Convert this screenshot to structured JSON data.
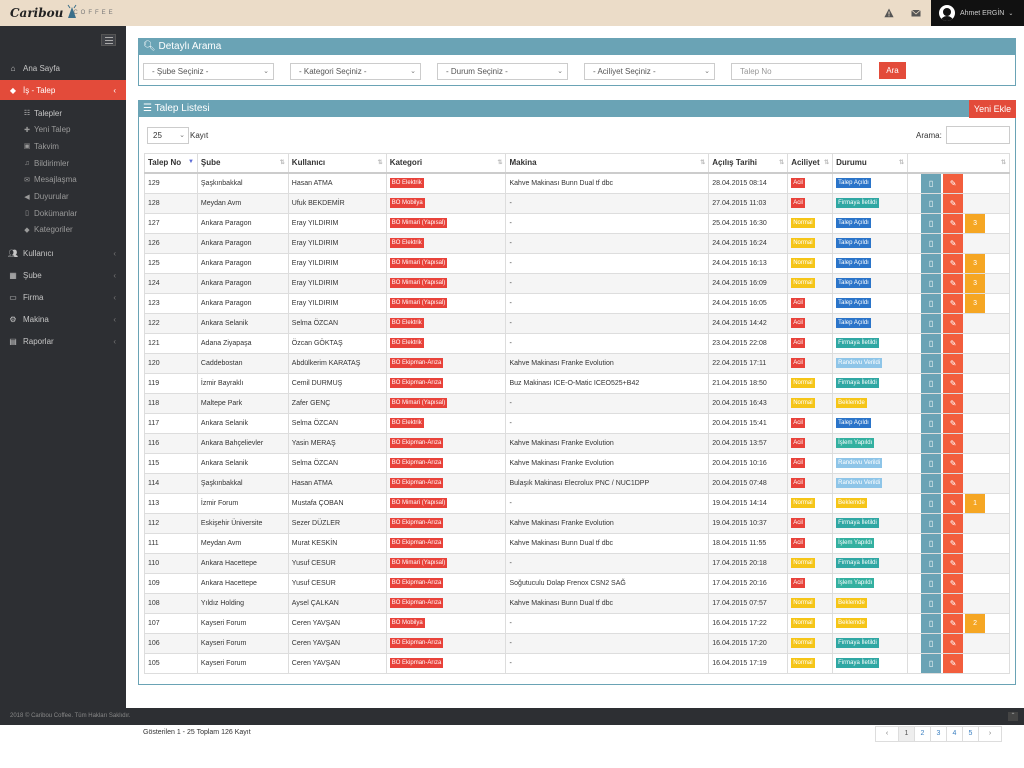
{
  "brand": {
    "name": "Caribou",
    "suffix": "COFFEE"
  },
  "topbar": {
    "alert_icon": "warning-icon",
    "mail_icon": "envelope-icon",
    "user_name": "Ahmet ERGİN"
  },
  "sidebar": {
    "items": [
      {
        "label": "Ana Sayfa",
        "icon": "home-icon"
      },
      {
        "label": "İş - Talep",
        "icon": "tag-icon",
        "active": true
      },
      {
        "label": "Kullanıcı",
        "icon": "users-icon"
      },
      {
        "label": "Şube",
        "icon": "building-icon"
      },
      {
        "label": "Firma",
        "icon": "card-icon"
      },
      {
        "label": "Makina",
        "icon": "cogs-icon"
      },
      {
        "label": "Raporlar",
        "icon": "chart-icon"
      }
    ],
    "subitems": [
      {
        "label": "Talepler",
        "icon": "list-icon"
      },
      {
        "label": "Yeni Talep",
        "icon": "plus-icon"
      },
      {
        "label": "Takvim",
        "icon": "calendar-icon"
      },
      {
        "label": "Bildirimler",
        "icon": "bell-icon"
      },
      {
        "label": "Mesajlaşma",
        "icon": "comment-icon"
      },
      {
        "label": "Duyurular",
        "icon": "megaphone-icon"
      },
      {
        "label": "Dokümanlar",
        "icon": "file-icon"
      },
      {
        "label": "Kategoriler",
        "icon": "tag-icon"
      }
    ]
  },
  "search": {
    "title": "Detaylı Arama",
    "sube": "- Şube Seçiniz -",
    "kategori": "- Kategori Seçiniz -",
    "durum": "- Durum Seçiniz -",
    "aciliyet": "- Aciliyet Seçiniz -",
    "talep_placeholder": "Talep No",
    "button": "Ara"
  },
  "list": {
    "title": "Talep Listesi",
    "new_button": "Yeni Ekle",
    "page_size": "25",
    "page_size_label": "Kayıt",
    "search_label": "Arama:",
    "columns": [
      "Talep No",
      "Şube",
      "Kullanıcı",
      "Kategori",
      "Makina",
      "Açılış Tarihi",
      "Aciliyet",
      "Durumu"
    ],
    "rows": [
      {
        "no": "129",
        "sube": "Şaşkınbakkal",
        "user": "Hasan ATMA",
        "kat": "BO Elektrik",
        "makina": "Kahve Makinası Bunn Dual tf dbc",
        "tarih": "28.04.2015 08:14",
        "acil": "Acil",
        "durum": "Talep Açıldı",
        "count": ""
      },
      {
        "no": "128",
        "sube": "Meydan Avm",
        "user": "Ufuk BEKDEMİR",
        "kat": "BO Mobilya",
        "makina": "-",
        "tarih": "27.04.2015 11:03",
        "acil": "Acil",
        "durum": "Firmaya İletildi",
        "count": ""
      },
      {
        "no": "127",
        "sube": "Ankara Paragon",
        "user": "Eray YILDIRIM",
        "kat": "BO Mimari (Yapısal)",
        "makina": "-",
        "tarih": "25.04.2015 16:30",
        "acil": "Normal",
        "durum": "Talep Açıldı",
        "count": "3"
      },
      {
        "no": "126",
        "sube": "Ankara Paragon",
        "user": "Eray YILDIRIM",
        "kat": "BO Elektrik",
        "makina": "-",
        "tarih": "24.04.2015 16:24",
        "acil": "Normal",
        "durum": "Talep Açıldı",
        "count": ""
      },
      {
        "no": "125",
        "sube": "Ankara Paragon",
        "user": "Eray YILDIRIM",
        "kat": "BO Mimari (Yapısal)",
        "makina": "-",
        "tarih": "24.04.2015 16:13",
        "acil": "Normal",
        "durum": "Talep Açıldı",
        "count": "3"
      },
      {
        "no": "124",
        "sube": "Ankara Paragon",
        "user": "Eray YILDIRIM",
        "kat": "BO Mimari (Yapısal)",
        "makina": "-",
        "tarih": "24.04.2015 16:09",
        "acil": "Normal",
        "durum": "Talep Açıldı",
        "count": "3"
      },
      {
        "no": "123",
        "sube": "Ankara Paragon",
        "user": "Eray YILDIRIM",
        "kat": "BO Mimari (Yapısal)",
        "makina": "-",
        "tarih": "24.04.2015 16:05",
        "acil": "Acil",
        "durum": "Talep Açıldı",
        "count": "3"
      },
      {
        "no": "122",
        "sube": "Ankara Selanik",
        "user": "Selma ÖZCAN",
        "kat": "BO Elektrik",
        "makina": "-",
        "tarih": "24.04.2015 14:42",
        "acil": "Acil",
        "durum": "Talep Açıldı",
        "count": ""
      },
      {
        "no": "121",
        "sube": "Adana Ziyapaşa",
        "user": "Özcan GÖKTAŞ",
        "kat": "BO Elektrik",
        "makina": "-",
        "tarih": "23.04.2015 22:08",
        "acil": "Acil",
        "durum": "Firmaya İletildi",
        "count": ""
      },
      {
        "no": "120",
        "sube": "Caddebostan",
        "user": "Abdülkerim KARATAŞ",
        "kat": "BO Ekipman-Arıza",
        "makina": "Kahve Makinası Franke Evolution",
        "tarih": "22.04.2015 17:11",
        "acil": "Acil",
        "durum": "Randevu Verildi",
        "count": ""
      },
      {
        "no": "119",
        "sube": "İzmir Bayraklı",
        "user": "Cemil DURMUŞ",
        "kat": "BO Ekipman-Arıza",
        "makina": "Buz Makinası ICE-O-Matic ICEO525+B42",
        "tarih": "21.04.2015 18:50",
        "acil": "Normal",
        "durum": "Firmaya İletildi",
        "count": ""
      },
      {
        "no": "118",
        "sube": "Maltepe Park",
        "user": "Zafer GENÇ",
        "kat": "BO Mimari (Yapısal)",
        "makina": "-",
        "tarih": "20.04.2015 16:43",
        "acil": "Normal",
        "durum": "Beklemde",
        "count": ""
      },
      {
        "no": "117",
        "sube": "Ankara Selanik",
        "user": "Selma ÖZCAN",
        "kat": "BO Elektrik",
        "makina": "-",
        "tarih": "20.04.2015 15:41",
        "acil": "Acil",
        "durum": "Talep Açıldı",
        "count": ""
      },
      {
        "no": "116",
        "sube": "Ankara Bahçelievler",
        "user": "Yasin MERAŞ",
        "kat": "BO Ekipman-Arıza",
        "makina": "Kahve Makinası Franke Evolution",
        "tarih": "20.04.2015 13:57",
        "acil": "Acil",
        "durum": "İşlem Yapıldı",
        "count": ""
      },
      {
        "no": "115",
        "sube": "Ankara Selanik",
        "user": "Selma ÖZCAN",
        "kat": "BO Ekipman-Arıza",
        "makina": "Kahve Makinası Franke Evolution",
        "tarih": "20.04.2015 10:16",
        "acil": "Acil",
        "durum": "Randevu Verildi",
        "count": ""
      },
      {
        "no": "114",
        "sube": "Şaşkınbakkal",
        "user": "Hasan ATMA",
        "kat": "BO Ekipman-Arıza",
        "makina": "Bulaşık Makinası Elecrolux PNC / NUC1DPP",
        "tarih": "20.04.2015 07:48",
        "acil": "Acil",
        "durum": "Randevu Verildi",
        "count": ""
      },
      {
        "no": "113",
        "sube": "İzmir Forum",
        "user": "Mustafa ÇOBAN",
        "kat": "BO Mimari (Yapısal)",
        "makina": "-",
        "tarih": "19.04.2015 14:14",
        "acil": "Normal",
        "durum": "Beklemde",
        "count": "1"
      },
      {
        "no": "112",
        "sube": "Eskişehir Üniversite",
        "user": "Sezer DÜZLER",
        "kat": "BO Ekipman-Arıza",
        "makina": "Kahve Makinası Franke Evolution",
        "tarih": "19.04.2015 10:37",
        "acil": "Acil",
        "durum": "Firmaya İletildi",
        "count": ""
      },
      {
        "no": "111",
        "sube": "Meydan Avm",
        "user": "Murat KESKİN",
        "kat": "BO Ekipman-Arıza",
        "makina": "Kahve Makinası Bunn Dual tf dbc",
        "tarih": "18.04.2015 11:55",
        "acil": "Acil",
        "durum": "İşlem Yapıldı",
        "count": ""
      },
      {
        "no": "110",
        "sube": "Ankara Hacettepe",
        "user": "Yusuf CESUR",
        "kat": "BO Mimari (Yapısal)",
        "makina": "-",
        "tarih": "17.04.2015 20:18",
        "acil": "Normal",
        "durum": "Firmaya İletildi",
        "count": ""
      },
      {
        "no": "109",
        "sube": "Ankara Hacettepe",
        "user": "Yusuf CESUR",
        "kat": "BO Ekipman-Arıza",
        "makina": "Soğutuculu Dolap Frenox CSN2 SAĞ",
        "tarih": "17.04.2015 20:16",
        "acil": "Acil",
        "durum": "İşlem Yapıldı",
        "count": ""
      },
      {
        "no": "108",
        "sube": "Yıldız Holding",
        "user": "Aysel ÇALKAN",
        "kat": "BO Ekipman-Arıza",
        "makina": "Kahve Makinası Bunn Dual tf dbc",
        "tarih": "17.04.2015 07:57",
        "acil": "Normal",
        "durum": "Beklemde",
        "count": ""
      },
      {
        "no": "107",
        "sube": "Kayseri Forum",
        "user": "Ceren  YAVŞAN",
        "kat": "BO Mobilya",
        "makina": "-",
        "tarih": "16.04.2015 17:22",
        "acil": "Normal",
        "durum": "Beklemde",
        "count": "2"
      },
      {
        "no": "106",
        "sube": "Kayseri Forum",
        "user": "Ceren  YAVŞAN",
        "kat": "BO Ekipman-Arıza",
        "makina": "-",
        "tarih": "16.04.2015 17:20",
        "acil": "Normal",
        "durum": "Firmaya İletildi",
        "count": ""
      },
      {
        "no": "105",
        "sube": "Kayseri Forum",
        "user": "Ceren  YAVŞAN",
        "kat": "BO Ekipman-Arıza",
        "makina": "-",
        "tarih": "16.04.2015 17:19",
        "acil": "Normal",
        "durum": "Firmaya İletildi",
        "count": ""
      }
    ],
    "summary": "Gösterilen 1 - 25 Toplam 126 Kayıt",
    "pages": [
      "‹",
      "1",
      "2",
      "3",
      "4",
      "5",
      "›"
    ]
  },
  "footer": {
    "text": "2018 © Caribou Coffee. Tüm Hakları Saklıdır."
  },
  "colors": {
    "accent": "#e34b3a",
    "panel": "#6aa3b5",
    "acil": "#e8423a",
    "normal": "#f5c518",
    "durum": {
      "Talep Açıldı": "#2a74c9",
      "Firmaya İletildi": "#2fa7a3",
      "Randevu Verildi": "#8ec5e8",
      "Beklemde": "#f5c518",
      "İşlem Yapıldı": "#33b0a0"
    }
  }
}
